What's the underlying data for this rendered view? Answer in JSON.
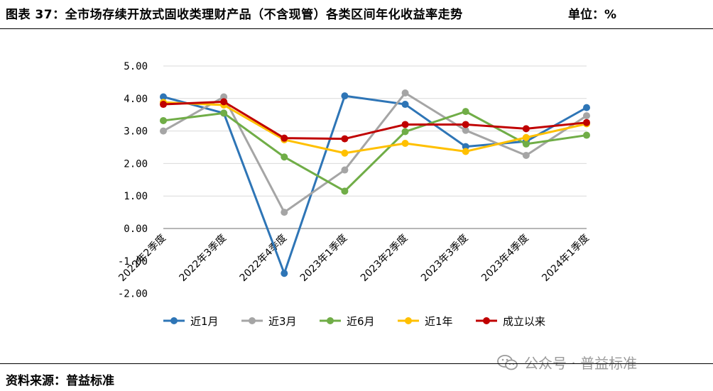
{
  "header": {
    "title": "图表 37：全市场存续开放式固收类理财产品（不含现管）各类区间年化收益率走势",
    "unit": "单位：%"
  },
  "footer": {
    "source": "资料来源：普益标准",
    "watermark": "公众号 · 普益标准"
  },
  "chart_data": {
    "type": "line",
    "categories": [
      "2022年2季度",
      "2022年3季度",
      "2022年4季度",
      "2023年1季度",
      "2023年2季度",
      "2023年3季度",
      "2023年4季度",
      "2024年1季度"
    ],
    "series": [
      {
        "name": "近1月",
        "color": "#2e75b6",
        "values": [
          4.05,
          3.55,
          -1.38,
          4.08,
          3.82,
          2.52,
          2.68,
          3.72
        ]
      },
      {
        "name": "近3月",
        "color": "#a5a5a5",
        "values": [
          3.0,
          4.05,
          0.5,
          1.8,
          4.17,
          3.02,
          2.25,
          3.47
        ]
      },
      {
        "name": "近6月",
        "color": "#70ad47",
        "values": [
          3.32,
          3.55,
          2.2,
          1.15,
          2.98,
          3.6,
          2.6,
          2.87
        ]
      },
      {
        "name": "近1年",
        "color": "#ffc000",
        "values": [
          3.88,
          3.8,
          2.73,
          2.32,
          2.62,
          2.37,
          2.8,
          3.22
        ]
      },
      {
        "name": "成立以来",
        "color": "#c00000",
        "values": [
          3.82,
          3.9,
          2.78,
          2.76,
          3.2,
          3.2,
          3.07,
          3.26
        ]
      }
    ],
    "y_ticks": [
      "5.00",
      "4.00",
      "3.00",
      "2.00",
      "1.00",
      "0.00",
      "-1.00",
      "-2.00"
    ],
    "ylim": [
      -2,
      5
    ],
    "grid": true,
    "legend_position": "bottom",
    "title": "",
    "xlabel": "",
    "ylabel": ""
  }
}
